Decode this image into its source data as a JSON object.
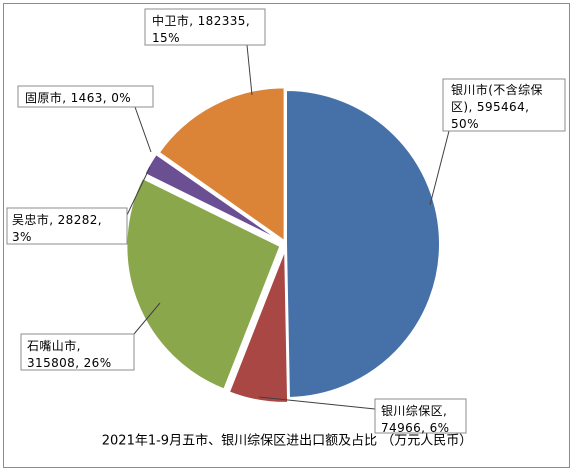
{
  "chart_data": {
    "type": "pie",
    "title": "2021年1-9月五市、银川综保区进出口额及占比 （万元人民币）",
    "slices": [
      {
        "label_lines": [
          "银川市(不含综保",
          "区), 595464,",
          "50%"
        ],
        "value": 595464,
        "percent": 50,
        "color": "#4671a8"
      },
      {
        "label_lines": [
          "银川综保区,",
          "74966, 6%"
        ],
        "value": 74966,
        "percent": 6,
        "color": "#a94744"
      },
      {
        "label_lines": [
          "石嘴山市,",
          "315808, 26%"
        ],
        "value": 315808,
        "percent": 26,
        "color": "#8aa74c"
      },
      {
        "label_lines": [
          "吴忠市, 28282,",
          "3%"
        ],
        "value": 28282,
        "percent": 3,
        "color": "#6a4f93"
      },
      {
        "label_lines": [
          "固原市, 1463, 0%"
        ],
        "value": 1463,
        "percent": 0,
        "color": "#3e93ab"
      },
      {
        "label_lines": [
          "中卫市, 182335,",
          "15%"
        ],
        "value": 182335,
        "percent": 15,
        "color": "#db8438"
      }
    ]
  }
}
